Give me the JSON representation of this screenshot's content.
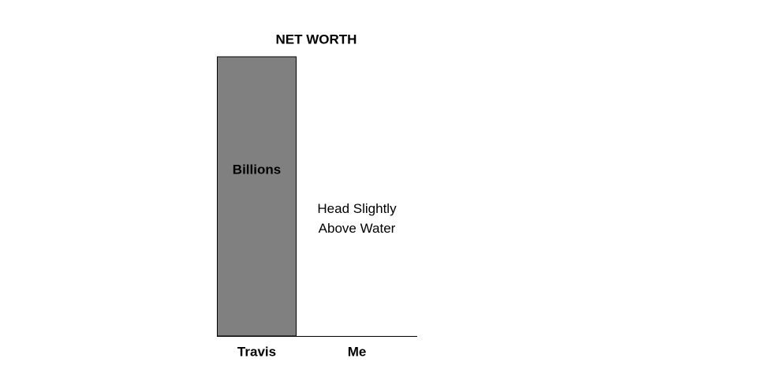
{
  "chart_data": {
    "type": "bar",
    "title": "NET WORTH",
    "categories": [
      "Travis",
      "Me"
    ],
    "values": [
      100,
      0
    ],
    "annotations": [
      "Billions",
      "Head Slightly Above Water"
    ],
    "color": "#808080",
    "ylim": [
      0,
      100
    ]
  }
}
